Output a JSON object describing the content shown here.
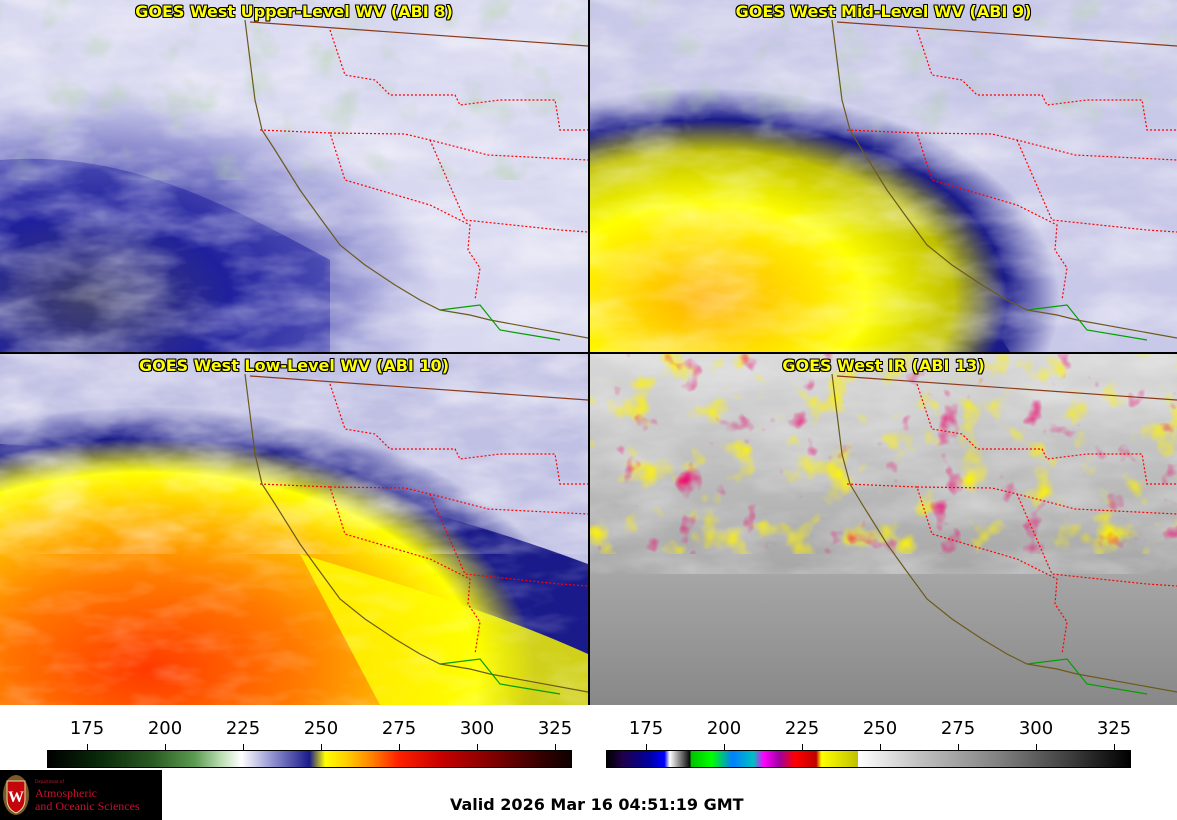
{
  "panels": {
    "upper_left": {
      "title": "GOES West Upper-Level WV (ABI 8)"
    },
    "upper_right": {
      "title": "GOES West Mid-Level WV (ABI 9)"
    },
    "lower_left": {
      "title": "GOES West Low-Level WV (ABI 10)"
    },
    "lower_right": {
      "title": "GOES West IR (ABI 13)"
    }
  },
  "colorbars": {
    "left": {
      "ticks": [
        "175",
        "200",
        "225",
        "250",
        "275",
        "300",
        "325"
      ]
    },
    "right": {
      "ticks": [
        "175",
        "200",
        "225",
        "250",
        "275",
        "300",
        "325"
      ]
    }
  },
  "logo": {
    "line1": "Department of",
    "line2": "Atmospheric",
    "line3": "and Oceanic Sciences"
  },
  "valid_time": "Valid 2026 Mar 16 04:51:19 GMT",
  "colors": {
    "title": "#ffff00",
    "state_borders": "#ff0000",
    "coastline": "#6b5a1a",
    "mexico_border": "#00a000"
  }
}
